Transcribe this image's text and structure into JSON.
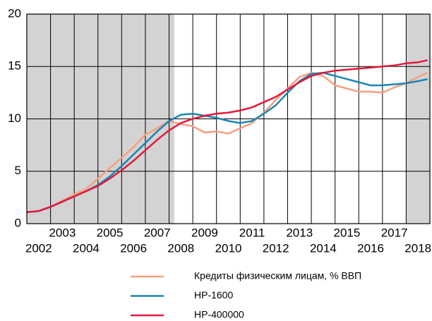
{
  "chart_data": {
    "type": "line",
    "x": [
      2002,
      2002.5,
      2003,
      2003.5,
      2004,
      2004.5,
      2005,
      2005.5,
      2006,
      2006.5,
      2007,
      2007.5,
      2008,
      2008.5,
      2009,
      2009.5,
      2010,
      2010.5,
      2011,
      2011.5,
      2012,
      2012.5,
      2013,
      2013.5,
      2014,
      2014.5,
      2015,
      2015.5,
      2016,
      2016.5,
      2017,
      2017.5,
      2018,
      2018.5,
      2018.9
    ],
    "series": [
      {
        "name": "Кредиты физическим лицам, % ВВП",
        "color": "#f59f80",
        "values": [
          1.1,
          1.2,
          1.6,
          2.2,
          2.8,
          3.3,
          4.3,
          5.3,
          6.3,
          7.3,
          8.5,
          9.1,
          9.8,
          9.5,
          9.3,
          8.7,
          8.8,
          8.6,
          9.1,
          9.6,
          10.6,
          11.8,
          12.9,
          14.0,
          14.4,
          14.1,
          13.2,
          12.9,
          12.6,
          12.6,
          12.5,
          13.0,
          13.4,
          14.0,
          14.4
        ]
      },
      {
        "name": "HP-1600",
        "color": "#1a86b4",
        "values": [
          1.1,
          1.2,
          1.6,
          2.1,
          2.6,
          3.1,
          3.7,
          4.5,
          5.5,
          6.6,
          7.7,
          8.8,
          9.8,
          10.4,
          10.5,
          10.3,
          10.1,
          9.8,
          9.6,
          9.8,
          10.5,
          11.3,
          12.5,
          13.6,
          14.3,
          14.4,
          14.1,
          13.8,
          13.5,
          13.2,
          13.2,
          13.3,
          13.4,
          13.6,
          13.8
        ]
      },
      {
        "name": "HP-400000",
        "color": "#e2193c",
        "values": [
          1.1,
          1.2,
          1.6,
          2.1,
          2.6,
          3.1,
          3.6,
          4.3,
          5.1,
          6.0,
          7.0,
          8.0,
          8.9,
          9.6,
          10.0,
          10.3,
          10.5,
          10.6,
          10.8,
          11.1,
          11.6,
          12.1,
          12.8,
          13.5,
          14.1,
          14.4,
          14.6,
          14.7,
          14.8,
          14.9,
          15.0,
          15.1,
          15.3,
          15.4,
          15.6
        ]
      }
    ],
    "xlim": [
      2002,
      2019
    ],
    "xticks": [
      2002,
      2003,
      2004,
      2005,
      2006,
      2007,
      2008,
      2009,
      2010,
      2011,
      2012,
      2013,
      2014,
      2015,
      2016,
      2017,
      2018
    ],
    "ylim": [
      0,
      20
    ],
    "yticks": [
      0,
      5,
      10,
      15,
      20
    ],
    "shaded_ranges": [
      [
        2002,
        2008.22
      ],
      [
        2018,
        2019
      ]
    ],
    "shade_color": "#d3d3d3",
    "grid": true,
    "legend": "bottom"
  }
}
